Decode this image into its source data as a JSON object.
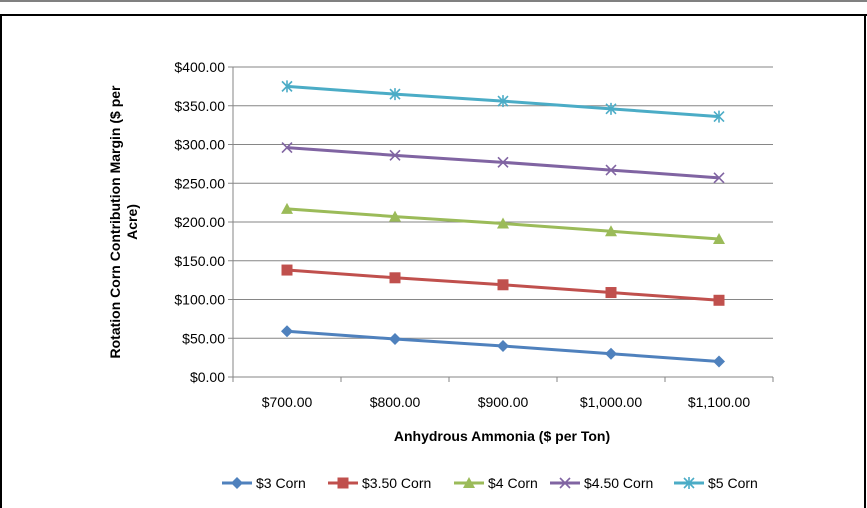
{
  "header_text": "); ... ; ... ... ... , ... ...",
  "chart_data": {
    "type": "line",
    "title": "",
    "xlabel": "Anhydrous Ammonia ($ per Ton)",
    "ylabel": "Rotation Corn Contribution Margin ($ per Acre)",
    "ylabel_lines": [
      "Rotation Corn Contribution Margin ($ per",
      "Acre)"
    ],
    "categories": [
      "$700.00",
      "$800.00",
      "$900.00",
      "$1,000.00",
      "$1,100.00"
    ],
    "x": [
      700,
      800,
      900,
      1000,
      1100
    ],
    "ylim": [
      0,
      400
    ],
    "yticks": [
      0,
      50,
      100,
      150,
      200,
      250,
      300,
      350,
      400
    ],
    "ytick_labels": [
      "$0.00",
      "$50.00",
      "$100.00",
      "$150.00",
      "$200.00",
      "$250.00",
      "$300.00",
      "$350.00",
      "$400.00"
    ],
    "grid": true,
    "legend_position": "bottom",
    "series": [
      {
        "name": "$3 Corn",
        "values": [
          59,
          49,
          40,
          30,
          20
        ],
        "color": "#4F81BD",
        "marker": "diamond"
      },
      {
        "name": "$3.50 Corn",
        "values": [
          138,
          128,
          119,
          109,
          99
        ],
        "color": "#C0504D",
        "marker": "square"
      },
      {
        "name": "$4 Corn",
        "values": [
          217,
          207,
          198,
          188,
          178
        ],
        "color": "#9BBB59",
        "marker": "triangle"
      },
      {
        "name": "$4.50 Corn",
        "values": [
          296,
          286,
          277,
          267,
          257
        ],
        "color": "#8064A2",
        "marker": "x"
      },
      {
        "name": "$5 Corn",
        "values": [
          375,
          365,
          356,
          346,
          336
        ],
        "color": "#4BACC6",
        "marker": "star"
      }
    ]
  }
}
